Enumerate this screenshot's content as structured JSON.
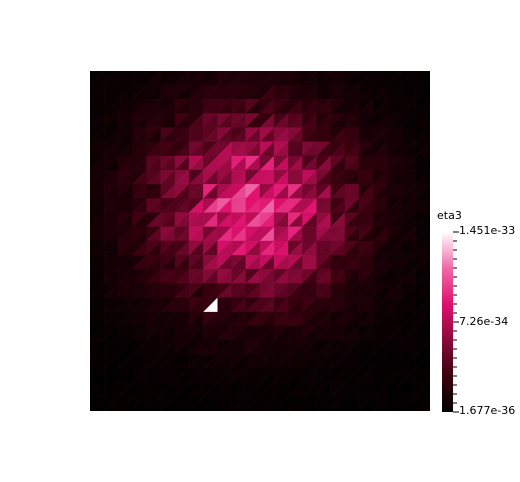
{
  "chart_data": {
    "type": "heatmap",
    "title": "",
    "field_name": "eta3",
    "colorbar": {
      "title": "eta3",
      "max_label": "1.451e-33",
      "mid_label": "7.26e-34",
      "min_label": "1.677e-36",
      "max": 1.451e-33,
      "mid": 7.26e-34,
      "min": 1.677e-36,
      "colormap": [
        "#000000",
        "#3a000e",
        "#8a0a3a",
        "#e0106e",
        "#f06aa8",
        "#ffffff"
      ]
    },
    "grid": {
      "nx": 24,
      "ny": 24,
      "triangulated": true
    },
    "distribution": {
      "shape": "radial blob",
      "center": [
        0.48,
        0.4
      ],
      "peak_value": 1.451e-33,
      "peak_location": [
        0.35,
        0.67
      ]
    }
  }
}
